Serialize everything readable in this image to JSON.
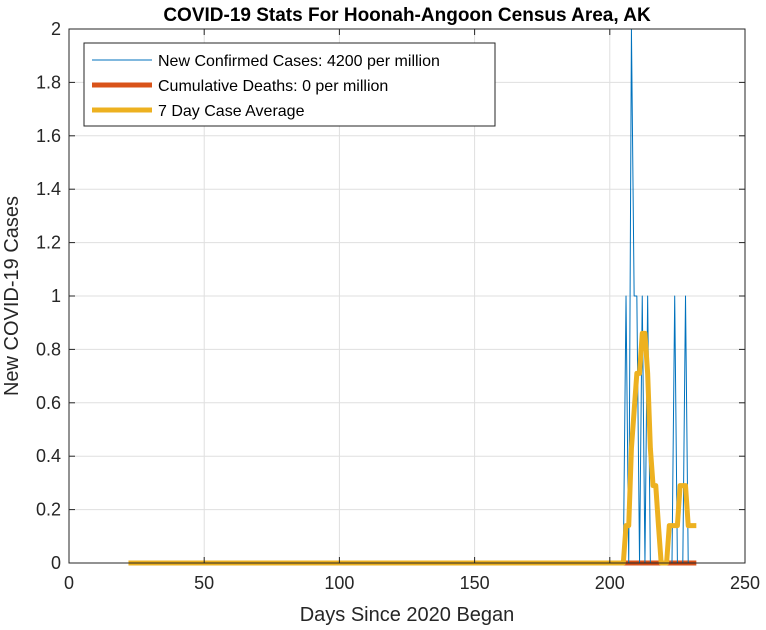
{
  "chart_data": {
    "type": "line",
    "title": "COVID-19 Stats For Hoonah-Angoon Census Area, AK",
    "xlabel": "Days Since 2020 Began",
    "ylabel": "New COVID-19 Cases",
    "xlim": [
      0,
      250
    ],
    "ylim": [
      0,
      2
    ],
    "xticks": [
      0,
      50,
      100,
      150,
      200,
      250
    ],
    "yticks": [
      0,
      0.2,
      0.4,
      0.6,
      0.8,
      1,
      1.2,
      1.4,
      1.6,
      1.8,
      2
    ],
    "ytick_labels": [
      "0",
      "0.2",
      "0.4",
      "0.6",
      "0.8",
      "1",
      "1.2",
      "1.4",
      "1.6",
      "1.8",
      "2"
    ],
    "grid": true,
    "legend_position": "top-left",
    "series": [
      {
        "name": "New Confirmed Cases: 4200 per million",
        "color": "#0072BD",
        "x": [
          22,
          205,
          206,
          207,
          208,
          209,
          210,
          211,
          212,
          213,
          214,
          215,
          216,
          217,
          218,
          219,
          220,
          221,
          222,
          223,
          224,
          225,
          226,
          227,
          228,
          229,
          230,
          231,
          232
        ],
        "y": [
          0,
          0,
          1,
          0,
          2,
          1,
          1,
          0,
          1,
          0,
          1,
          0,
          0,
          0,
          0,
          0,
          0,
          0,
          0,
          0,
          1,
          0,
          0,
          0,
          1,
          0,
          0,
          0,
          0
        ]
      },
      {
        "name": "Cumulative Deaths: 0 per million",
        "color": "#D95319",
        "x": [
          22,
          232
        ],
        "y": [
          0,
          0
        ]
      },
      {
        "name": "7 Day Case Average",
        "color": "#EDB120",
        "x": [
          22,
          205,
          206,
          207,
          208,
          209,
          210,
          211,
          212,
          213,
          214,
          215,
          216,
          217,
          218,
          219,
          220,
          221,
          222,
          223,
          224,
          225,
          226,
          227,
          228,
          229,
          230,
          231,
          232
        ],
        "y": [
          0,
          0,
          0.14,
          0.14,
          0.43,
          0.57,
          0.71,
          0.71,
          0.86,
          0.86,
          0.71,
          0.43,
          0.29,
          0.29,
          0.14,
          0,
          0,
          0,
          0.14,
          0.14,
          0.14,
          0.14,
          0.29,
          0.29,
          0.29,
          0.14,
          0.14,
          0.14,
          0.14
        ]
      }
    ]
  }
}
